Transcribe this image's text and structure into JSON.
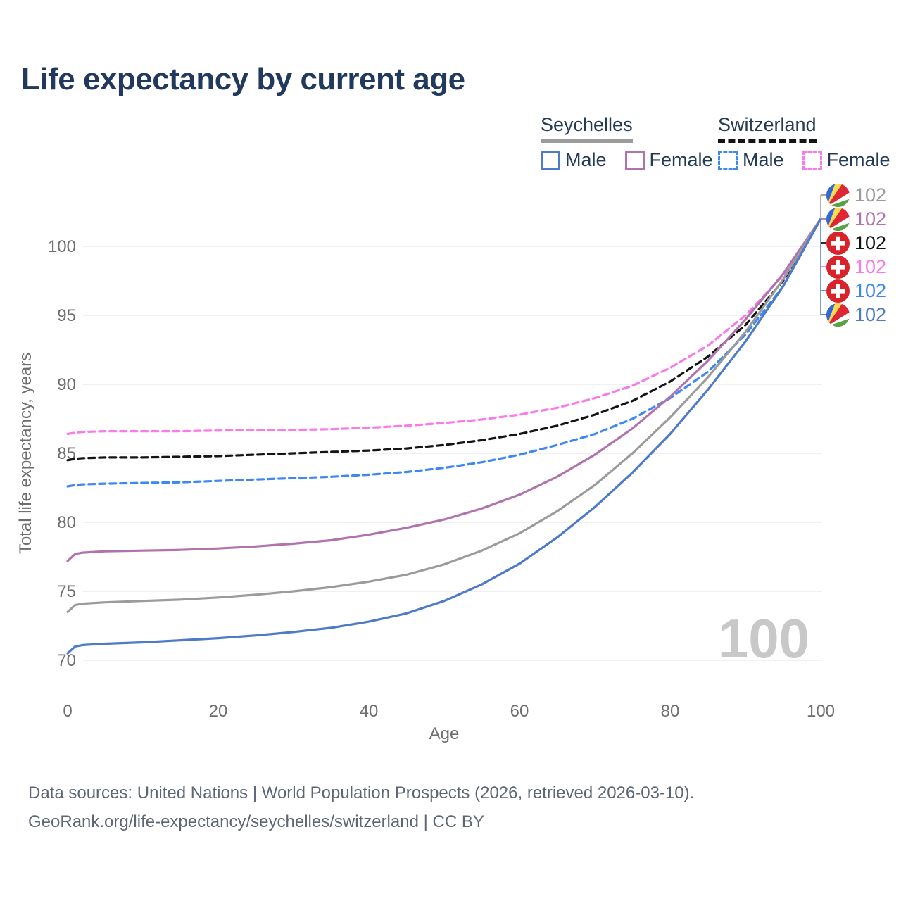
{
  "title": "Life expectancy by current age",
  "legend": {
    "groups": [
      {
        "label": "Seychelles",
        "line_style": "solid",
        "line_color": "#9b9b9b",
        "items": [
          {
            "label": "Male",
            "color": "#4e7ac7",
            "dash": false
          },
          {
            "label": "Female",
            "color": "#b173ae",
            "dash": false
          }
        ]
      },
      {
        "label": "Switzerland",
        "line_style": "dashed",
        "line_color": "#141414",
        "items": [
          {
            "label": "Male",
            "color": "#3d87f7",
            "dash": true
          },
          {
            "label": "Female",
            "color": "#fb79e9",
            "dash": true
          }
        ]
      }
    ]
  },
  "chart_data": {
    "type": "line",
    "title": "Life expectancy by current age",
    "xlabel": "Age",
    "ylabel": "Total life expectancy, years",
    "xticks": [
      0,
      20,
      40,
      60,
      80,
      100
    ],
    "yticks": [
      70,
      75,
      80,
      85,
      90,
      95,
      100
    ],
    "xlim": [
      0,
      100
    ],
    "ylim": [
      68.5,
      103
    ],
    "grid": "horizontal",
    "legend_position": "top-right",
    "watermark": "100",
    "x": [
      0,
      1,
      2,
      5,
      10,
      15,
      20,
      25,
      30,
      35,
      40,
      45,
      50,
      55,
      60,
      65,
      70,
      75,
      80,
      85,
      90,
      95,
      100
    ],
    "series": [
      {
        "id": "switzerland-female",
        "name": "Switzerland — Female",
        "color": "#fb79e9",
        "dash": true,
        "values": [
          86.4,
          86.5,
          86.55,
          86.6,
          86.6,
          86.6,
          86.65,
          86.7,
          86.7,
          86.75,
          86.85,
          87.0,
          87.2,
          87.45,
          87.8,
          88.3,
          89.0,
          89.9,
          91.2,
          92.8,
          95.0,
          97.9,
          102
        ]
      },
      {
        "id": "switzerland-combined",
        "name": "Switzerland — Both sexes",
        "color": "#141414",
        "dash": true,
        "values": [
          84.5,
          84.6,
          84.65,
          84.7,
          84.7,
          84.75,
          84.8,
          84.9,
          85.0,
          85.1,
          85.2,
          85.35,
          85.6,
          85.95,
          86.4,
          87.0,
          87.8,
          88.8,
          90.2,
          92.0,
          94.3,
          97.5,
          102
        ]
      },
      {
        "id": "switzerland-male",
        "name": "Switzerland — Male",
        "color": "#3d87f7",
        "dash": true,
        "values": [
          82.6,
          82.7,
          82.75,
          82.8,
          82.85,
          82.9,
          83.0,
          83.1,
          83.2,
          83.3,
          83.45,
          83.65,
          83.95,
          84.35,
          84.9,
          85.6,
          86.4,
          87.5,
          89.0,
          90.9,
          93.6,
          97.1,
          102
        ]
      },
      {
        "id": "seychelles-female",
        "name": "Seychelles — Female",
        "color": "#b173ae",
        "dash": false,
        "values": [
          77.2,
          77.7,
          77.8,
          77.9,
          77.95,
          78.0,
          78.1,
          78.25,
          78.45,
          78.7,
          79.1,
          79.6,
          80.2,
          81.0,
          82.0,
          83.3,
          84.9,
          86.8,
          89.1,
          91.7,
          94.7,
          98.0,
          102
        ]
      },
      {
        "id": "seychelles-combined",
        "name": "Seychelles — Both sexes",
        "color": "#9b9b9b",
        "dash": false,
        "values": [
          73.5,
          74.0,
          74.1,
          74.2,
          74.3,
          74.4,
          74.55,
          74.75,
          75.0,
          75.3,
          75.7,
          76.2,
          76.95,
          77.95,
          79.2,
          80.8,
          82.7,
          85.0,
          87.6,
          90.5,
          93.8,
          97.6,
          102
        ]
      },
      {
        "id": "seychelles-male",
        "name": "Seychelles — Male",
        "color": "#4e7ac7",
        "dash": false,
        "values": [
          70.5,
          71.0,
          71.1,
          71.2,
          71.3,
          71.45,
          71.6,
          71.8,
          72.05,
          72.35,
          72.8,
          73.4,
          74.3,
          75.5,
          77.0,
          78.9,
          81.1,
          83.6,
          86.4,
          89.6,
          93.1,
          97.1,
          102
        ]
      }
    ]
  },
  "end_labels": [
    {
      "value": "102",
      "flag": "seychelles",
      "color": "#9b9b9b"
    },
    {
      "value": "102",
      "flag": "seychelles",
      "color": "#b173ae"
    },
    {
      "value": "102",
      "flag": "switzerland",
      "color": "#141414"
    },
    {
      "value": "102",
      "flag": "switzerland",
      "color": "#fb79e9"
    },
    {
      "value": "102",
      "flag": "switzerland",
      "color": "#3d87f7"
    },
    {
      "value": "102",
      "flag": "seychelles",
      "color": "#4e7ac7"
    }
  ],
  "footer": {
    "line1": "Data sources: United Nations | World Population Prospects (2026, retrieved 2026-03-10).",
    "line2": "GeoRank.org/life-expectancy/seychelles/switzerland | CC BY"
  },
  "colors": {
    "title": "#20395c",
    "axis_text": "#6e6e6e",
    "gridline": "#e8e8e8",
    "watermark": "#c8c8c8",
    "footer_text": "#5d6773"
  }
}
